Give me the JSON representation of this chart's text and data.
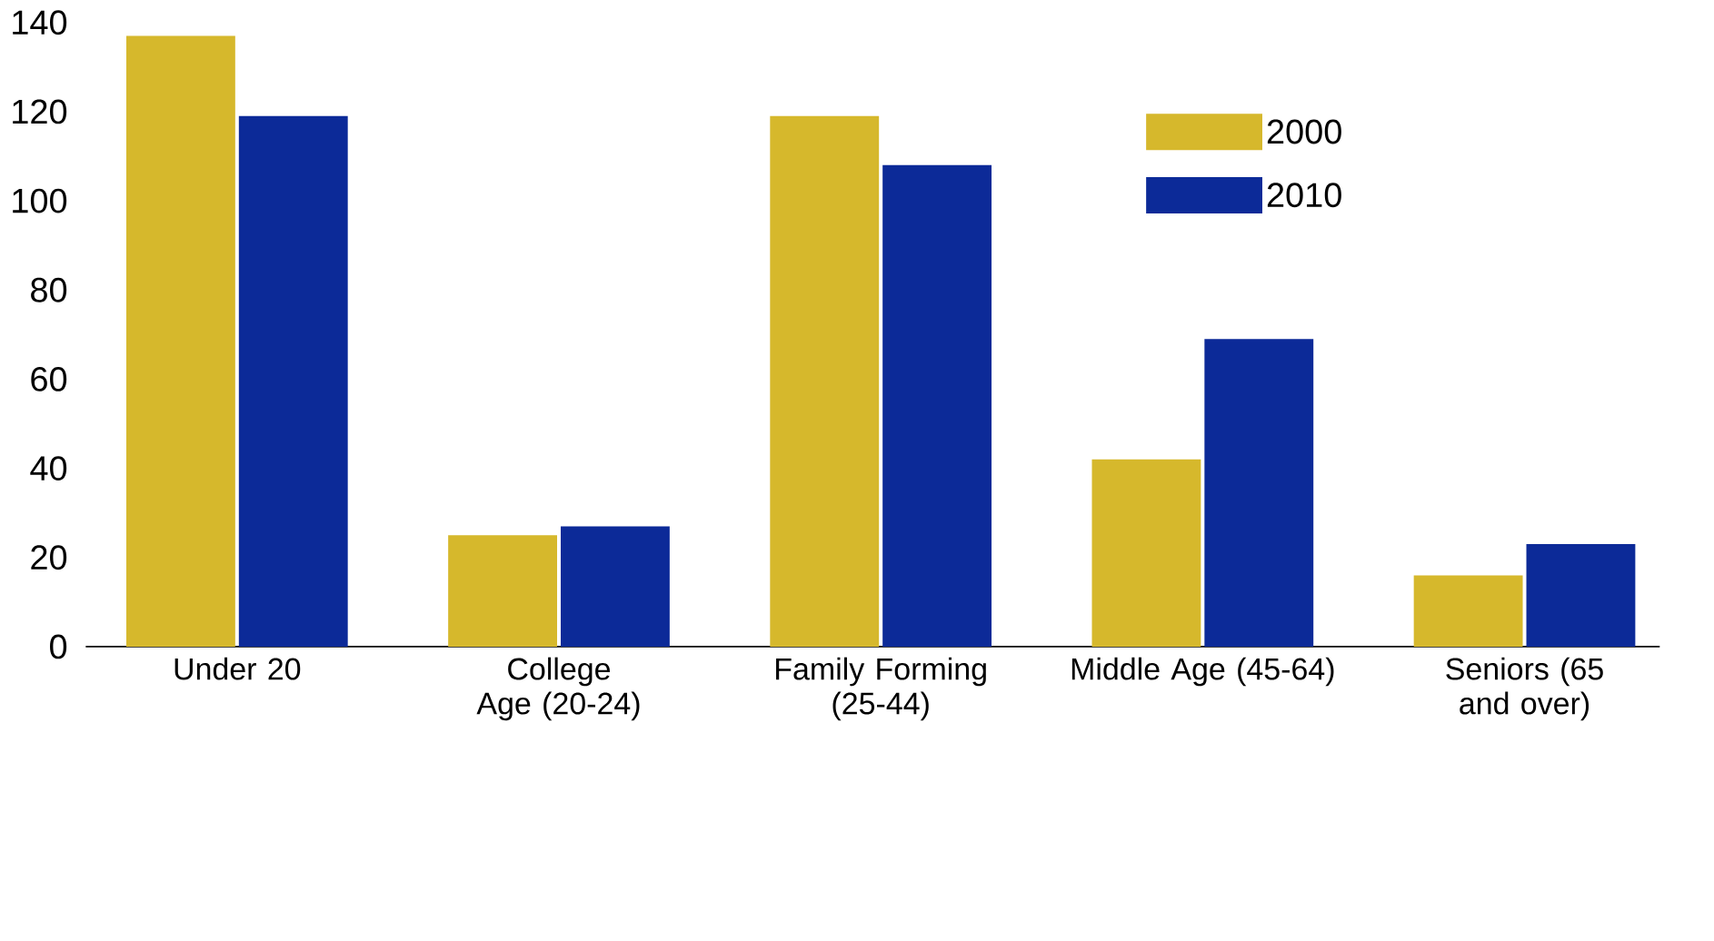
{
  "chart_data": {
    "type": "bar",
    "categories": [
      "Under 20",
      "College Age (20-24)",
      "Family Forming (25-44)",
      "Middle Age (45-64)",
      "Seniors (65 and over)"
    ],
    "series": [
      {
        "name": "2000",
        "color": "#d6b82c",
        "values": [
          137,
          25,
          119,
          42,
          16
        ]
      },
      {
        "name": "2010",
        "color": "#0c2a98",
        "values": [
          119,
          27,
          108,
          69,
          23
        ]
      }
    ],
    "ylim": [
      0,
      140
    ],
    "yticks": [
      0,
      20,
      40,
      60,
      80,
      100,
      120,
      140
    ],
    "grid": false,
    "legend": "top right"
  }
}
